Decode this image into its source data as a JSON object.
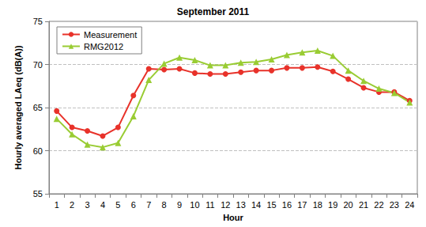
{
  "chart_data": {
    "type": "line",
    "title": "September 2011",
    "x_label": "Hour",
    "y_label": "Hourly averaged LAeq (dB(A))",
    "categories": [
      "1",
      "2",
      "3",
      "4",
      "5",
      "6",
      "7",
      "8",
      "9",
      "10",
      "11",
      "12",
      "13",
      "14",
      "15",
      "16",
      "17",
      "18",
      "19",
      "20",
      "21",
      "22",
      "23",
      "24"
    ],
    "series": [
      {
        "name": "Measurement",
        "color": "#e8322a",
        "marker": "circle",
        "line_style": "solid",
        "values": [
          64.6,
          62.7,
          62.3,
          61.7,
          62.7,
          66.4,
          69.5,
          69.4,
          69.5,
          69.0,
          68.9,
          68.9,
          69.1,
          69.3,
          69.3,
          69.6,
          69.6,
          69.7,
          69.2,
          68.3,
          67.3,
          66.8,
          66.8,
          65.8
        ]
      },
      {
        "name": "RMG2012",
        "color": "#99cc33",
        "marker": "triangle",
        "line_style": "solid",
        "values": [
          63.7,
          61.9,
          60.7,
          60.4,
          60.9,
          64.0,
          68.2,
          70.1,
          70.8,
          70.5,
          69.9,
          69.9,
          70.2,
          70.3,
          70.6,
          71.1,
          71.4,
          71.6,
          71.0,
          69.3,
          68.1,
          67.2,
          66.7,
          65.6
        ]
      }
    ],
    "ylim": [
      55,
      75
    ],
    "yticks": [
      55,
      60,
      65,
      70,
      75
    ],
    "grid": true,
    "legend": "upper left"
  }
}
